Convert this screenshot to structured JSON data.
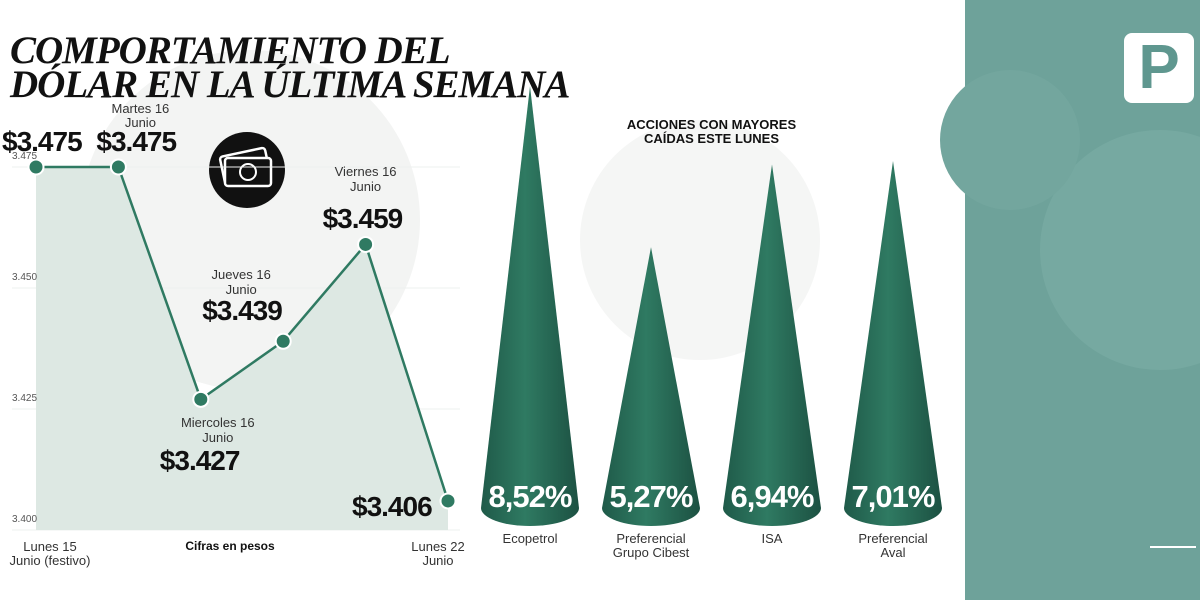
{
  "chart_data": [
    {
      "type": "line",
      "title": "COMPORTAMIENTO DEL\nDÓLAR EN LA ÚLTIMA SEMANA",
      "x_label": "Cifras en pesos",
      "categories": [
        "Lunes 15\nJunio (festivo)",
        "Martes 16\nJunio",
        "Miercoles 16\nJunio",
        "Jueves 16\nJunio",
        "Viernes 16\nJunio",
        "Lunes 22\nJunio"
      ],
      "values": [
        3475,
        3475,
        3427,
        3439,
        3459,
        3406
      ],
      "value_labels": [
        "$3.475",
        "$3.475",
        "$3.427",
        "$3.439",
        "$3.459",
        "$3.406"
      ],
      "color": "#2f7a62",
      "area_color": "#dde8e3",
      "ylim": [
        3400,
        3475
      ],
      "yticks": [
        {
          "value": 3400,
          "label": "3.400"
        },
        {
          "value": 3425,
          "label": "3.425"
        },
        {
          "value": 3450,
          "label": "3.450"
        },
        {
          "value": 3475,
          "label": "3.475"
        }
      ],
      "grid": true
    },
    {
      "type": "cone",
      "title": "ACCIONES CON MAYORES\nCAÍDAS ESTE LUNES",
      "categories": [
        "Ecopetrol",
        "Preferencial\nGrupo Cibest",
        "ISA",
        "Preferencial\nAval"
      ],
      "values": [
        8.52,
        5.27,
        6.94,
        7.01
      ],
      "value_labels": [
        "8,52%",
        "5,27%",
        "6,94%",
        "7,01%"
      ],
      "color": "#2a6e5a"
    }
  ],
  "logo": "P"
}
